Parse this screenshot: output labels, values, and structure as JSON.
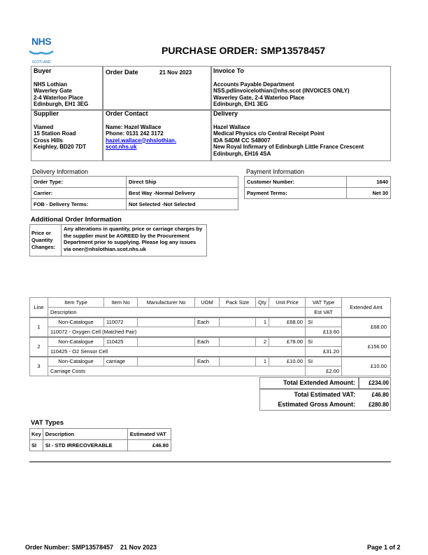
{
  "logo": {
    "text": "NHS",
    "sub": "SCOTLAND",
    "color": "#1f6fb5"
  },
  "title": "PURCHASE ORDER: SMP13578457",
  "buyer": {
    "heading": "Buyer",
    "lines": [
      "NHS Lothian",
      "Waverley Gate",
      "2-4 Waterloo Place",
      "Edinburgh,  EH1 3EG"
    ]
  },
  "order_date": {
    "heading": "Order Date",
    "value": "21 Nov 2023"
  },
  "invoice_to": {
    "heading": "Invoice To",
    "lines": [
      "Accounts Payable Department",
      "NSS.pdlinvoicelothian@nhs.scot (INVOICES ONLY)",
      "Waverley Gate, 2-4 Waterloo Place",
      "Edinburgh,     EH1 3EG"
    ]
  },
  "supplier": {
    "heading": "Supplier",
    "lines": [
      "Viamed",
      "15 Station Road",
      "Cross Hills",
      "Keighley,  BD20 7DT"
    ]
  },
  "order_contact": {
    "heading": "Order Contact",
    "name": "Name: Hazel Wallace",
    "phone": "Phone: 0131 242 3172",
    "email1": "hazel.wallace@nhslothian.",
    "email2": "scot.nhs.uk"
  },
  "delivery": {
    "heading": "Delivery",
    "lines": [
      "Hazel Wallace",
      "Medical Physics c/o Central Receipt Point",
      "IDA S4DM CC S48007",
      "New Royal Infirmary of Edinburgh Little France Crescent",
      "Edinburgh,  EH16 4SA"
    ]
  },
  "delivery_info": {
    "heading": "Delivery Information",
    "rows": [
      [
        "Order Type:",
        "Direct Ship"
      ],
      [
        "Carrier:",
        "Best Way  -Normal Delivery"
      ],
      [
        "FOB - Delivery Terms:",
        "Not Selected  -Not Selected"
      ]
    ]
  },
  "payment_info": {
    "heading": "Payment Information",
    "rows": [
      [
        "Customer Number:",
        "1640"
      ],
      [
        "Payment Terms:",
        "Net 30"
      ]
    ]
  },
  "additional": {
    "heading": "Additional Order Information",
    "label": "Price or Quantity Changes:",
    "text": "Any alterations in quantity, price or carriage charges by the supplier must be AGREED by the Procurement Department prior to supplying. Please log any issues via oner@nhslothian.scot.nhs.uk"
  },
  "items": {
    "headers": {
      "line": "Line",
      "item_type": "Item Type",
      "item_no": "Item No",
      "manufacturer_no": "Manufacturer No",
      "uom": "UOM",
      "pack_size": "Pack Size",
      "qty": "Qty",
      "unit_price": "Unit Price",
      "vat_type": "VAT Type",
      "description": "Description",
      "est_vat": "Est VAT",
      "extended": "Extended Amt"
    },
    "rows": [
      {
        "line": "1",
        "item_type": "Non-Catalogue",
        "item_no": "110072",
        "manufacturer_no": "",
        "uom": "Each",
        "pack_size": "",
        "qty": "1",
        "unit_price": "£68.00",
        "vat_type": "SI",
        "description": "110072 - Oxygen Cell (Matched Pair)",
        "est_vat": "£13.60",
        "extended": "£68.00"
      },
      {
        "line": "2",
        "item_type": "Non-Catalogue",
        "item_no": "110425",
        "manufacturer_no": "",
        "uom": "Each",
        "pack_size": "",
        "qty": "2",
        "unit_price": "£78.00",
        "vat_type": "SI",
        "description": "110425 - O2 Sensor Cell",
        "est_vat": "£31.20",
        "extended": "£156.00"
      },
      {
        "line": "3",
        "item_type": "Non-Catalogue",
        "item_no": "carriage",
        "manufacturer_no": "",
        "uom": "Each",
        "pack_size": "",
        "qty": "1",
        "unit_price": "£10.00",
        "vat_type": "SI",
        "description": "Carriage Costs",
        "est_vat": "£2.00",
        "extended": "£10.00"
      }
    ]
  },
  "totals": {
    "extended_label": "Total Extended Amount:",
    "extended": "£234.00",
    "vat_label": "Total Estimated VAT:",
    "vat": "£46.80",
    "gross_label": "Estimated Gross Amount:",
    "gross": "£280.80"
  },
  "vat_types": {
    "heading": "VAT Types",
    "headers": [
      "Key",
      "Description",
      "Estimated VAT"
    ],
    "rows": [
      [
        "SI",
        "SI - STD IRRECOVERABLE",
        "£46.80"
      ]
    ]
  },
  "footer": {
    "order_number": "Order Number: SMP13578457",
    "date": "21 Nov 2023",
    "page": "Page 1 of 2"
  }
}
